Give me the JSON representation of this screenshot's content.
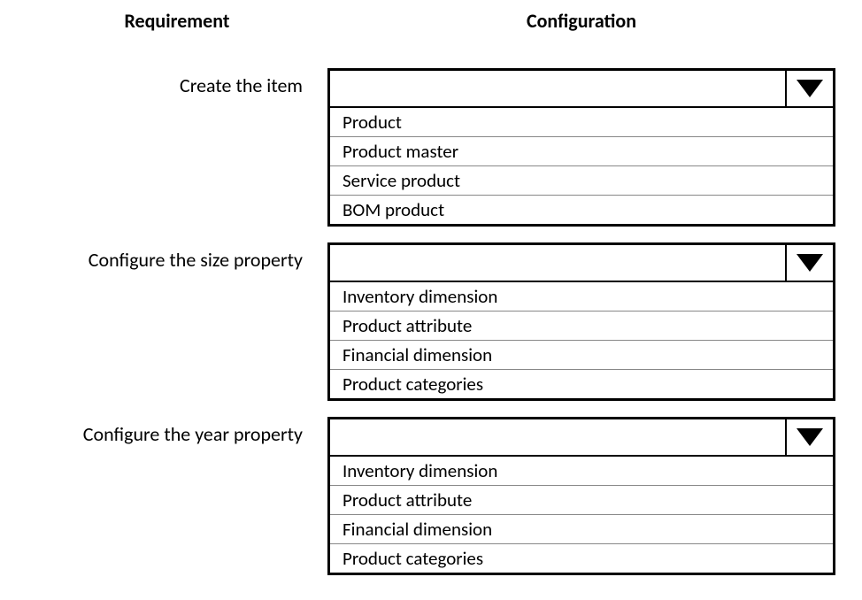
{
  "headers": {
    "requirement": "Requirement",
    "configuration": "Configuration"
  },
  "blocks": [
    {
      "label": "Create the item",
      "options": [
        "Product",
        "Product master",
        "Service product",
        "BOM product"
      ]
    },
    {
      "label": "Configure the size property",
      "options": [
        "Inventory dimension",
        "Product attribute",
        "Financial dimension",
        "Product categories"
      ]
    },
    {
      "label": "Configure the year property",
      "options": [
        "Inventory dimension",
        "Product attribute",
        "Financial dimension",
        "Product categories"
      ]
    }
  ],
  "styling": {
    "border_color": "#000000",
    "option_divider_color": "#888888",
    "background_color": "#ffffff",
    "text_color": "#000000",
    "header_fontsize": 22,
    "label_fontsize": 22,
    "option_fontsize": 21,
    "triangle_color": "#000000"
  }
}
